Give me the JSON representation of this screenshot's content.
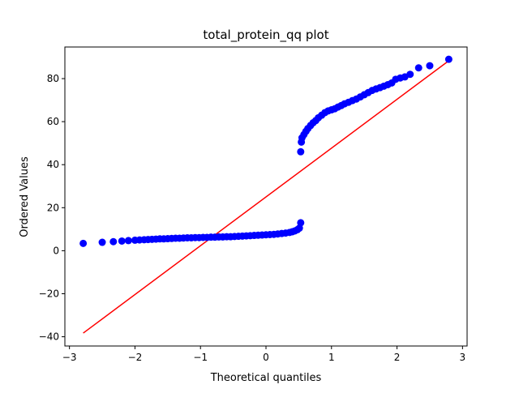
{
  "chart_data": {
    "type": "scatter",
    "title": "total_protein_qq plot",
    "xlabel": "Theoretical quantiles",
    "ylabel": "Ordered Values",
    "xlim": [
      -3.07,
      3.07
    ],
    "ylim": [
      -44.3,
      94.7
    ],
    "xticks": [
      -3,
      -2,
      -1,
      0,
      1,
      2,
      3
    ],
    "yticks": [
      -40,
      -20,
      0,
      20,
      40,
      60,
      80
    ],
    "xtick_labels": [
      "−3",
      "−2",
      "−1",
      "0",
      "1",
      "2",
      "3"
    ],
    "ytick_labels": [
      "−40",
      "−20",
      "0",
      "20",
      "40",
      "60",
      "80"
    ],
    "grid": false,
    "series": [
      {
        "kind": "points",
        "color": "#0000ff",
        "x": [
          -2.79,
          -2.5,
          -2.33,
          -2.2,
          -2.1,
          -2.0,
          -1.93,
          -1.86,
          -1.8,
          -1.74,
          -1.68,
          -1.62,
          -1.56,
          -1.5,
          -1.44,
          -1.38,
          -1.32,
          -1.26,
          -1.2,
          -1.14,
          -1.08,
          -1.02,
          -0.96,
          -0.9,
          -0.84,
          -0.78,
          -0.72,
          -0.66,
          -0.6,
          -0.54,
          -0.48,
          -0.42,
          -0.36,
          -0.3,
          -0.24,
          -0.18,
          -0.12,
          -0.06,
          0.0,
          0.06,
          0.12,
          0.18,
          0.24,
          0.3,
          0.36,
          0.4,
          0.44,
          0.48,
          0.51,
          0.53,
          0.53,
          0.54,
          0.55,
          0.58,
          0.61,
          0.64,
          0.68,
          0.72,
          0.76,
          0.8,
          0.85,
          0.9,
          0.95,
          1.0,
          1.05,
          1.1,
          1.15,
          1.2,
          1.26,
          1.32,
          1.38,
          1.44,
          1.5,
          1.56,
          1.62,
          1.68,
          1.74,
          1.8,
          1.86,
          1.92,
          1.98,
          2.05,
          2.12,
          2.2,
          2.33,
          2.5,
          2.79
        ],
        "y": [
          3.4,
          3.9,
          4.2,
          4.5,
          4.7,
          4.9,
          5.0,
          5.1,
          5.2,
          5.3,
          5.4,
          5.5,
          5.5,
          5.6,
          5.7,
          5.8,
          5.8,
          5.9,
          6.0,
          6.0,
          6.1,
          6.1,
          6.2,
          6.2,
          6.3,
          6.3,
          6.4,
          6.4,
          6.5,
          6.5,
          6.6,
          6.7,
          6.8,
          6.9,
          7.0,
          7.1,
          7.2,
          7.3,
          7.4,
          7.5,
          7.6,
          7.8,
          8.0,
          8.2,
          8.5,
          8.8,
          9.2,
          9.8,
          10.5,
          13.0,
          46.0,
          50.5,
          52.5,
          54.0,
          55.5,
          56.8,
          58.2,
          59.5,
          60.5,
          61.8,
          63.0,
          64.2,
          65.0,
          65.5,
          66.0,
          66.8,
          67.5,
          68.3,
          69.0,
          69.8,
          70.5,
          71.5,
          72.5,
          73.5,
          74.5,
          75.2,
          75.8,
          76.5,
          77.2,
          78.0,
          79.7,
          80.3,
          80.8,
          82.0,
          85.0,
          86.0,
          89.0
        ]
      },
      {
        "kind": "fit-line",
        "color": "#ff0000",
        "x": [
          -2.79,
          2.79
        ],
        "y": [
          -38.3,
          88.3
        ]
      }
    ]
  }
}
